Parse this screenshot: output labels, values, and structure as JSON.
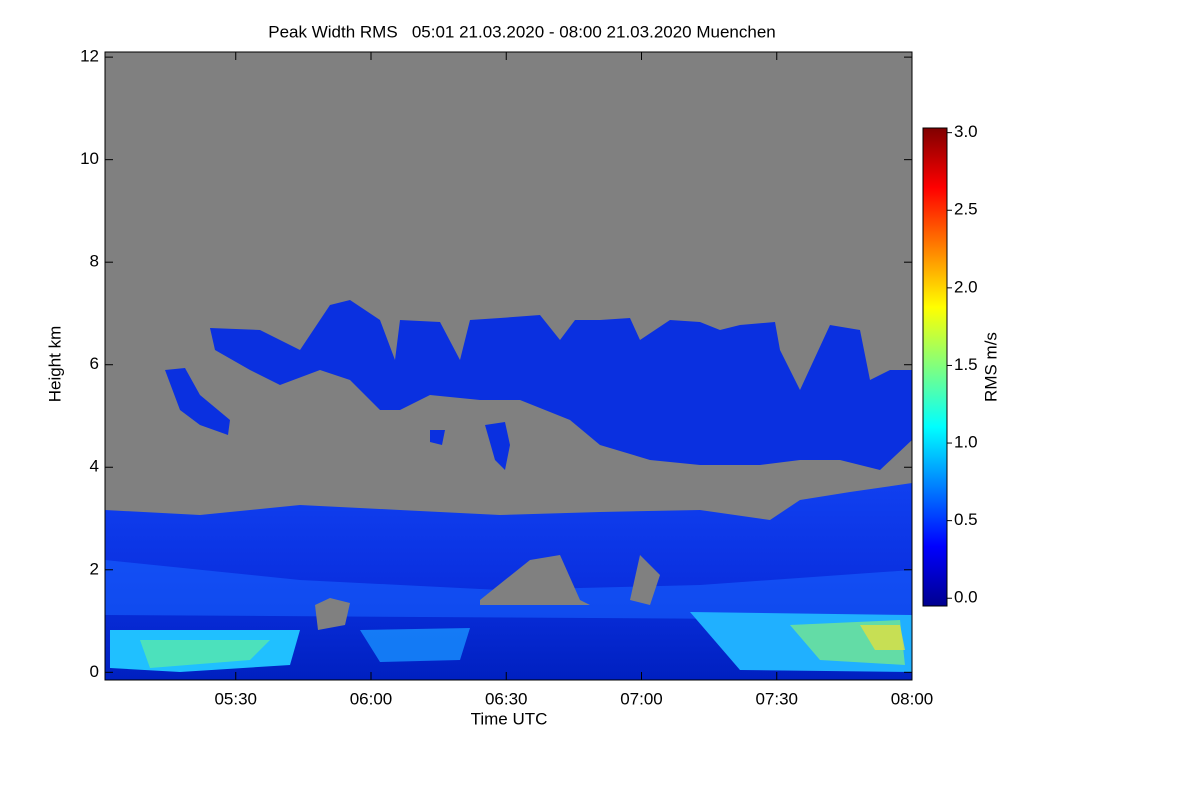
{
  "chart_data": {
    "type": "heatmap",
    "title": "Peak Width RMS   05:01 21.03.2020 - 08:00 21.03.2020 Muenchen",
    "x_label": "Time UTC",
    "y_label": "Height km",
    "xlim": [
      "05:01",
      "08:00"
    ],
    "xticks": [
      "05:30",
      "06:00",
      "06:30",
      "07:00",
      "07:30",
      "08:00"
    ],
    "ylim": [
      -0.15,
      12.1
    ],
    "yticks": [
      0,
      2,
      4,
      6,
      8,
      10,
      12
    ],
    "colorbar": {
      "label": "RMS m/s",
      "zlim": [
        -0.05,
        3.03
      ],
      "ticks": [
        {
          "value": 0,
          "label": "0.0"
        },
        {
          "value": 0.5,
          "label": "0.5"
        },
        {
          "value": 1,
          "label": "1.0"
        },
        {
          "value": 1.5,
          "label": "1.5"
        },
        {
          "value": 2,
          "label": "2.0"
        },
        {
          "value": 2.5,
          "label": "2.5"
        },
        {
          "value": 3,
          "label": "3.0"
        }
      ]
    }
  }
}
